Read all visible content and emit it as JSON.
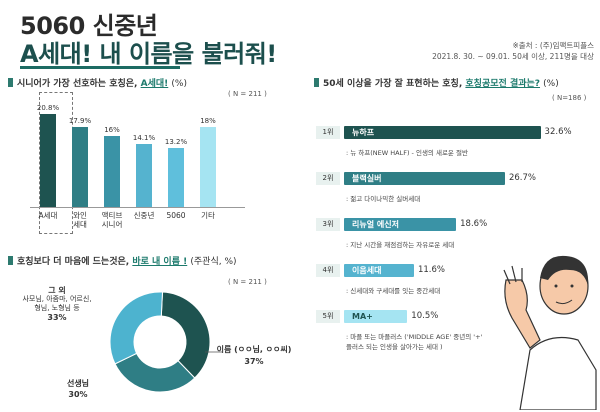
{
  "header": {
    "title_line1": "5060 신중년",
    "title_line2": "A세대! 내 이름을 불러줘!",
    "source_line1": "※출처 : (주)임팩트피플스",
    "source_line2": "2021.8. 30. ~ 09.01. 50세 이상, 211명을 대상"
  },
  "section1": {
    "title_pre": "시니어가 가장 선호하는 호칭은,",
    "title_hl": "A세대!",
    "title_post": "(%)",
    "n_label": "( N = 211 )"
  },
  "section2": {
    "title_pre": "호칭보다 더 마음에 드는것은,",
    "title_hl": "바로 내 이름 !",
    "title_post": "(주관식, %)",
    "n_label": "( N = 211 )",
    "labels": [
      {
        "name_lines": [
          "그 외",
          "사모님, 아줌마, 어르신,",
          "형님, 노형님 등"
        ],
        "value": "33%"
      },
      {
        "name_lines": [
          "선생님"
        ],
        "value": "30%"
      },
      {
        "name_lines": [
          "이름 (ㅇㅇ님, ㅇㅇ씨)"
        ],
        "value": "37%"
      }
    ]
  },
  "section3": {
    "title_pre": "50세 이상을 가장 잘 표현하는 호칭,",
    "title_hl": "호칭공모전 결과는?",
    "title_post": "(%)",
    "n_label": "( N=186 )",
    "rows": [
      {
        "rank": "1위",
        "name": "뉴하프",
        "pct": "32.6%",
        "desc": ": 뉴 하프(NEW HALF) - 인생의 새로운 절반"
      },
      {
        "rank": "2위",
        "name": "블랙실버",
        "pct": "26.7%",
        "desc": ": 젊고 다이나믹한 실버세대"
      },
      {
        "rank": "3위",
        "name": "리뉴얼 에신저",
        "pct": "18.6%",
        "desc": ": 지난 시간을 재점검하는 자유로운 세대"
      },
      {
        "rank": "4위",
        "name": "이음세대",
        "pct": "11.6%",
        "desc": ": 신세대와 구세대를 잇는 중간세대"
      },
      {
        "rank": "5위",
        "name": "MA+",
        "pct": "10.5%",
        "desc_line1": ": 마플 또는 마플러스 ('MIDDLE AGE' 중년의 '+'",
        "desc_line2": "플러스 되는 인생을 살아가는 세대 )"
      }
    ]
  },
  "chart_data": [
    {
      "type": "bar",
      "categories": [
        "A세대",
        "와인세대",
        "액티브시니어",
        "신중년",
        "5060",
        "기타"
      ],
      "category_lines": [
        [
          "A세대"
        ],
        [
          "와인",
          "세대"
        ],
        [
          "액티브",
          "시니어"
        ],
        [
          "신중년"
        ],
        [
          "5060"
        ],
        [
          "기타"
        ]
      ],
      "values": [
        20.8,
        17.9,
        16,
        14.1,
        13.2,
        18
      ],
      "value_labels": [
        "20.8%",
        "17.9%",
        "16%",
        "14.1%",
        "13.2%",
        "18%"
      ],
      "colors": [
        "#1e5350",
        "#2f7e85",
        "#3a93a6",
        "#55b3cf",
        "#5fbfdc",
        "#a5e4f2"
      ],
      "ylim": [
        0,
        22
      ]
    },
    {
      "type": "pie",
      "categories": [
        "이름 (ㅇㅇ님, ㅇㅇ씨)",
        "선생님",
        "그 외"
      ],
      "values": [
        37,
        30,
        33
      ],
      "colors": [
        "#1e5350",
        "#2f7e85",
        "#4db3cf"
      ]
    },
    {
      "type": "bar",
      "orientation": "horizontal",
      "categories": [
        "뉴하프",
        "블랙실버",
        "리뉴얼 에신저",
        "이음세대",
        "MA+"
      ],
      "values": [
        32.6,
        26.7,
        18.6,
        11.6,
        10.5
      ],
      "colors": [
        "#1e5350",
        "#2f7e85",
        "#3a93a6",
        "#55b3cf",
        "#a5e4f2"
      ],
      "xlim": [
        0,
        34
      ]
    }
  ]
}
